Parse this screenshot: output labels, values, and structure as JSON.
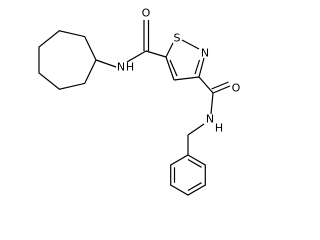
{
  "atoms": [
    "O",
    "S",
    "N",
    "N",
    "H",
    "O",
    "N",
    "H"
  ]
}
